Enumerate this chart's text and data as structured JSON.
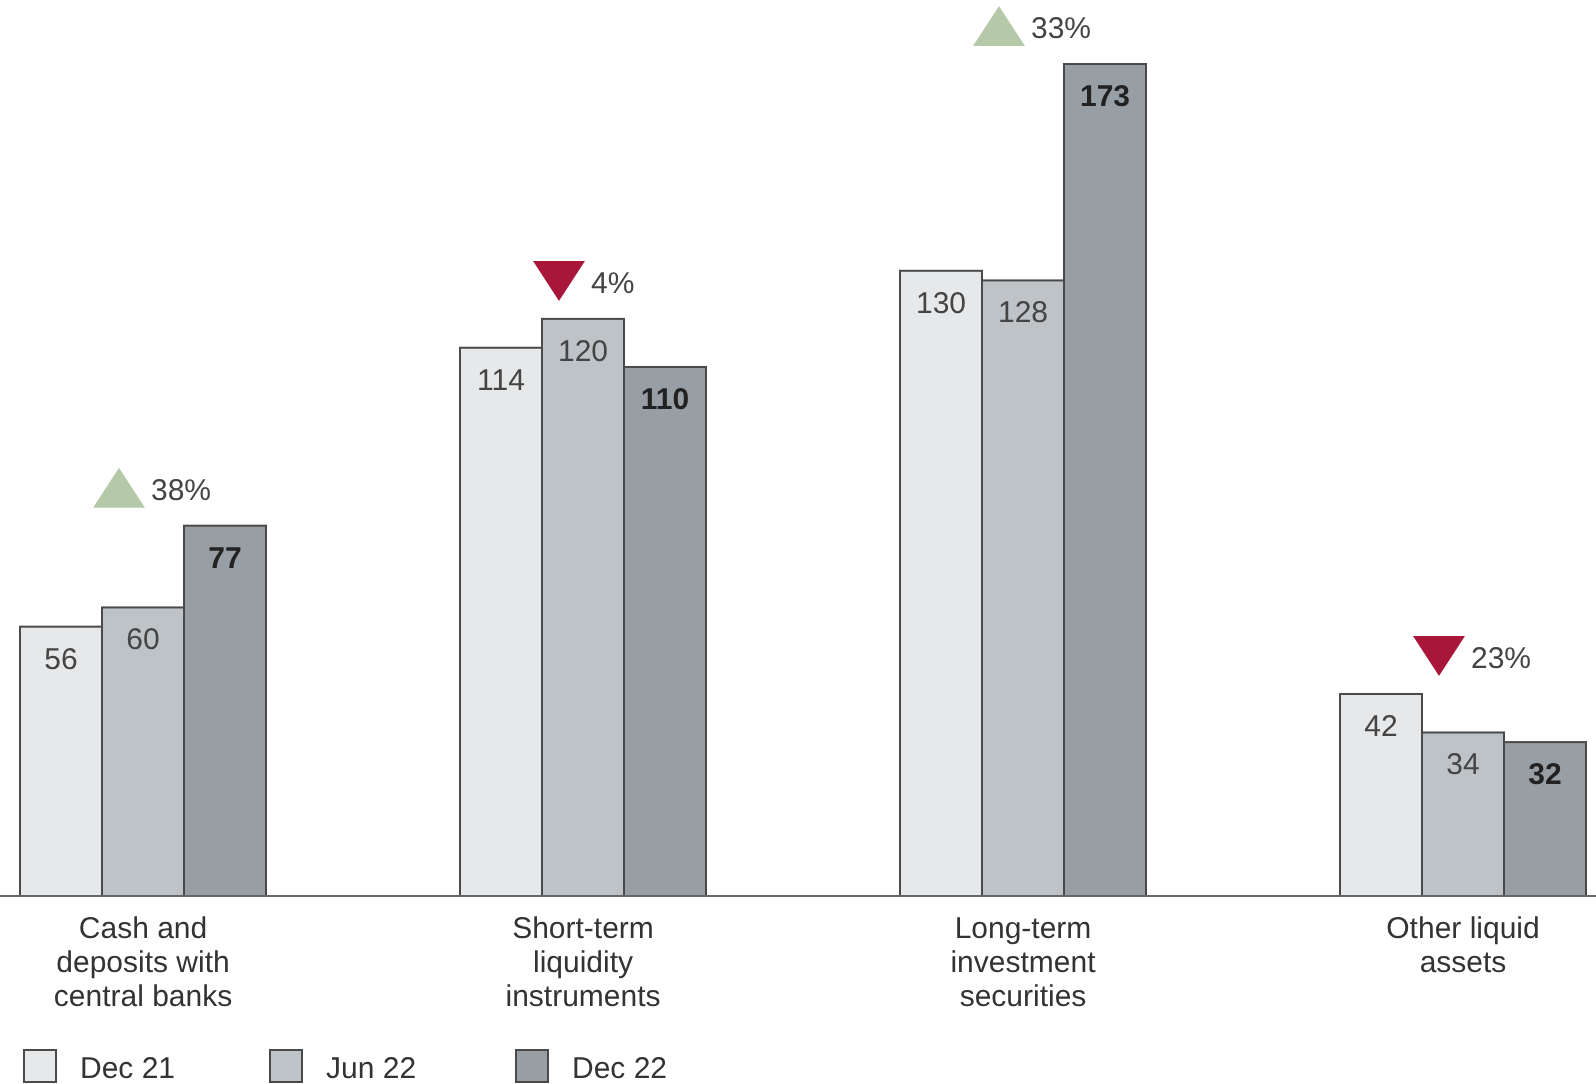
{
  "chart_data": {
    "type": "bar",
    "categories": [
      "Cash and deposits with central banks",
      "Short-term liquidity instruments",
      "Long-term investment securities",
      "Other liquid assets"
    ],
    "series": [
      {
        "name": "Dec 21",
        "color": "#e6e8ea",
        "values": [
          56,
          114,
          130,
          42
        ]
      },
      {
        "name": "Jun 22",
        "color": "#bec3c7",
        "values": [
          60,
          120,
          128,
          34
        ]
      },
      {
        "name": "Dec 22",
        "color": "#979ea4",
        "values": [
          77,
          110,
          173,
          32
        ]
      }
    ],
    "data_labels": true,
    "legend": "bottom",
    "annotations": [
      "38%",
      "4%",
      "33%",
      "23%"
    ]
  }
}
